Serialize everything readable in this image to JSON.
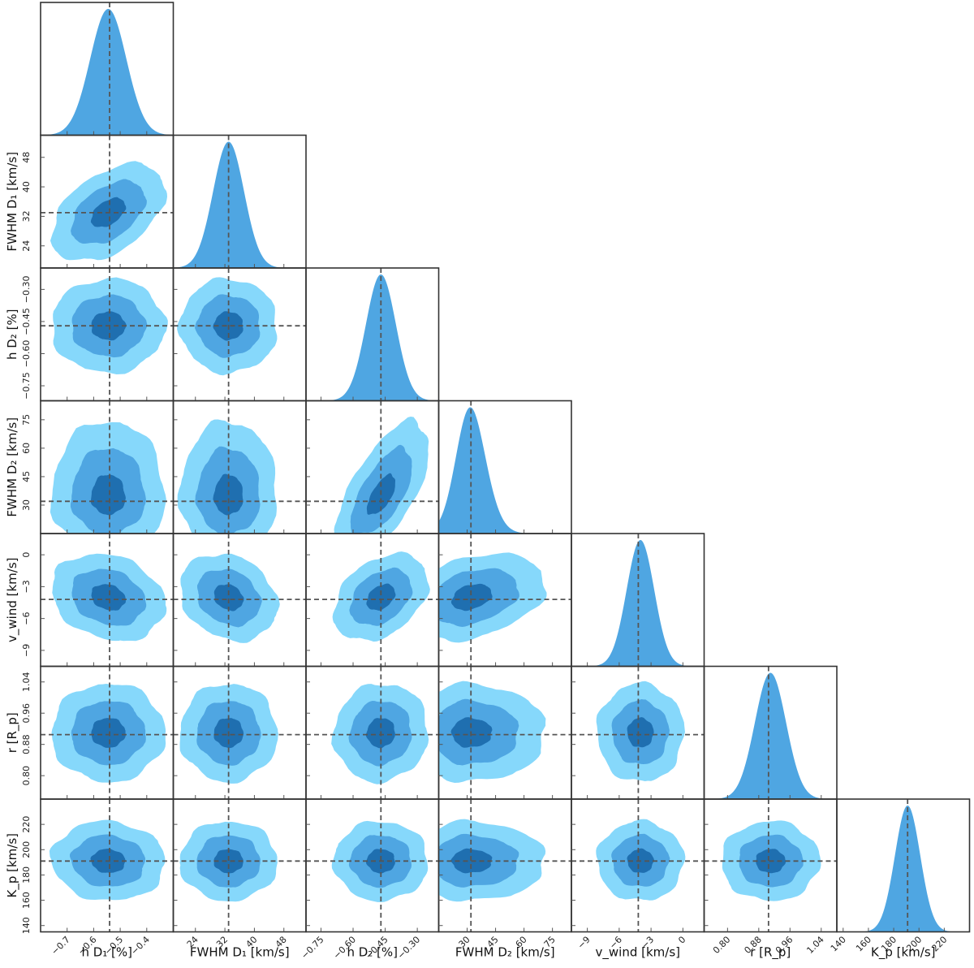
{
  "chart_data": {
    "type": "corner",
    "parameters": [
      {
        "name": "h D1",
        "unit": "%",
        "axis_label": "h D₁ [%]",
        "truth": -0.54,
        "mean": -0.545,
        "sd": 0.068,
        "range": [
          -0.8,
          -0.3
        ],
        "ticks": [
          -0.7,
          -0.6,
          -0.5,
          -0.4
        ],
        "tick_labels": [
          "−0.7",
          "−0.6",
          "−0.5",
          "−0.4"
        ]
      },
      {
        "name": "FWHM D1",
        "unit": "km/s",
        "axis_label": "FWHM D₁ [km/s]",
        "truth": 33,
        "mean": 33,
        "sd": 4.2,
        "range": [
          18,
          54
        ],
        "ticks": [
          24,
          32,
          40,
          48
        ],
        "tick_labels": [
          "24",
          "32",
          "40",
          "48"
        ]
      },
      {
        "name": "h D2",
        "unit": "%",
        "axis_label": "h D₂ [%]",
        "truth": -0.47,
        "mean": -0.47,
        "sd": 0.07,
        "range": [
          -0.82,
          -0.2
        ],
        "ticks": [
          -0.75,
          -0.6,
          -0.45,
          -0.3
        ],
        "tick_labels": [
          "−0.75",
          "−0.60",
          "−0.45",
          "−0.30"
        ]
      },
      {
        "name": "FWHM D2",
        "unit": "km/s",
        "axis_label": "FWHM D₂ [km/s]",
        "truth": 32,
        "mean": 27,
        "sd": 9.5,
        "range": [
          15,
          85
        ],
        "ticks": [
          30,
          45,
          60,
          75
        ],
        "tick_labels": [
          "30",
          "45",
          "60",
          "75"
        ]
      },
      {
        "name": "v_wind",
        "unit": "km/s",
        "axis_label": "v_wind [km/s]",
        "truth": -4.2,
        "mean": -4.0,
        "sd": 1.3,
        "range": [
          -10.5,
          2.0
        ],
        "ticks": [
          -9,
          -6,
          -3,
          0
        ],
        "tick_labels": [
          "−9",
          "−6",
          "−3",
          "0"
        ]
      },
      {
        "name": "r",
        "unit": "R_p",
        "axis_label": "r [R_p]",
        "truth": 0.905,
        "mean": 0.91,
        "sd": 0.04,
        "range": [
          0.74,
          1.08
        ],
        "ticks": [
          0.8,
          0.88,
          0.96,
          1.04
        ],
        "tick_labels": [
          "0.80",
          "0.88",
          "0.96",
          "1.04"
        ]
      },
      {
        "name": "K_p",
        "unit": "km/s",
        "axis_label": "K_p [km/s]",
        "truth": 191,
        "mean": 191,
        "sd": 10,
        "range": [
          135,
          240
        ],
        "ticks": [
          140,
          160,
          180,
          200,
          220
        ],
        "tick_labels": [
          "140",
          "160",
          "180",
          "200",
          "220"
        ]
      }
    ],
    "y_axis_labels": [
      "FWHM D₁ [km/s]",
      "h D₂ [%]",
      "FWHM D₂ [km/s]",
      "v_wind [km/s]",
      "r [R_p]",
      "K_p [km/s]"
    ],
    "correlations": [
      {
        "pair": [
          "h D1",
          "FWHM D1"
        ],
        "rho": 0.45
      },
      {
        "pair": [
          "h D2",
          "FWHM D2"
        ],
        "rho": 0.65
      },
      {
        "pair": [
          "h D1",
          "v_wind"
        ],
        "rho": -0.2
      },
      {
        "pair": [
          "FWHM D1",
          "v_wind"
        ],
        "rho": -0.2
      },
      {
        "pair": [
          "h D2",
          "v_wind"
        ],
        "rho": 0.35
      },
      {
        "pair": [
          "FWHM D2",
          "v_wind"
        ],
        "rho": 0.3
      },
      {
        "pair": [
          "h D1",
          "K_p"
        ],
        "rho": -0.05
      },
      {
        "pair": [
          "h D2",
          "r"
        ],
        "rho": 0.05
      }
    ],
    "contour_levels": [
      "1σ",
      "2σ",
      "3σ"
    ],
    "colors": {
      "level_1": "#1f6fb0",
      "level_2": "#4fa6e2",
      "level_3": "#86d8fb",
      "marginal_fill": "#4fa6e2",
      "truth_line": "#555555",
      "frame": "#333333"
    },
    "grid": false,
    "legend": "none"
  }
}
